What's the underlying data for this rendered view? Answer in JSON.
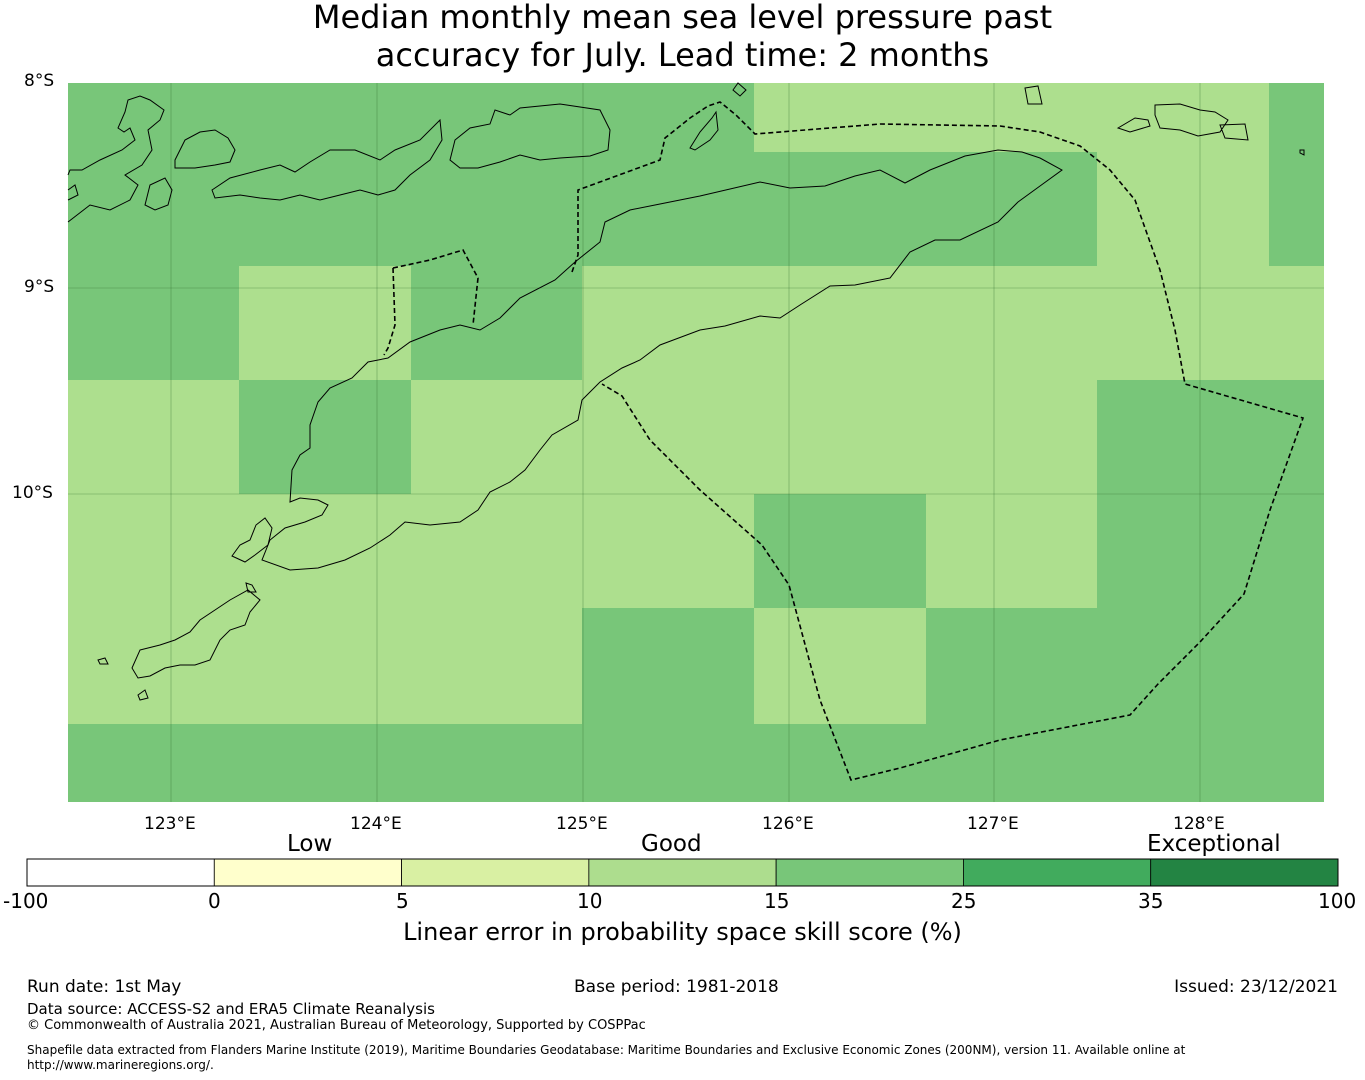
{
  "title": {
    "line1": "Median monthly mean sea level pressure past",
    "line2": "accuracy for July. Lead time: 2 months"
  },
  "map": {
    "lat_labels": [
      "8°S",
      "9°S",
      "10°S"
    ],
    "lon_labels": [
      "123°E",
      "124°E",
      "125°E",
      "126°E",
      "127°E",
      "128°E"
    ],
    "skill_colors": {
      "light": "#addf8e",
      "medium": "#78c679"
    }
  },
  "colorbar": {
    "categories": [
      "Low",
      "Good",
      "Exceptional"
    ],
    "ticks": [
      "-100",
      "0",
      "5",
      "10",
      "15",
      "25",
      "35",
      "100"
    ],
    "colors": [
      "#ffffff",
      "#ffffcc",
      "#d9f0a3",
      "#addd8e",
      "#78c679",
      "#41ab5d",
      "#238443"
    ],
    "label": "Linear error in probability space skill score (%)"
  },
  "footer": {
    "run_date": "Run date: 1st May",
    "base_period": "Base period: 1981-2018",
    "issued": "Issued: 23/12/2021",
    "data_source": "Data source: ACCESS-S2 and ERA5 Climate Reanalysis",
    "copyright": "© Commonwealth of Australia 2021, Australian Bureau of Meteorology, Supported by COSPPac",
    "shapefile_line1": "Shapefile data extracted from Flanders Marine Institute (2019), Maritime Boundaries Geodatabase: Maritime Boundaries and Exclusive Economic Zones (200NM), version 11. Available online at",
    "shapefile_line2": "http://www.marineregions.org/."
  }
}
